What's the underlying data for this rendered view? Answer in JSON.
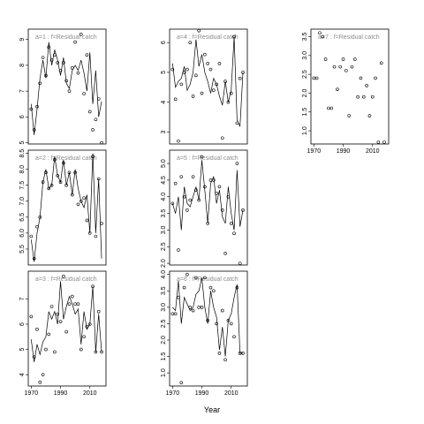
{
  "xlabel": "Year",
  "chart_data": [
    {
      "type": "line",
      "title": "a=1 : f=Residual catch",
      "x": [
        1970,
        1972,
        1974,
        1976,
        1978,
        1980,
        1982,
        1984,
        1986,
        1988,
        1990,
        1992,
        1994,
        1996,
        1998,
        2000,
        2002,
        2004,
        2006,
        2008,
        2010,
        2012,
        2014,
        2016,
        2018
      ],
      "series": [
        {
          "mark": "line",
          "color": "#000000",
          "values": [
            6.5,
            5.3,
            6.3,
            7.5,
            8.2,
            7.5,
            8.9,
            8.0,
            8.6,
            8.2,
            7.6,
            8.3,
            7.3,
            7.1,
            7.8,
            8.0,
            7.8,
            8.2,
            7.7,
            7.0,
            8.5,
            6.5,
            7.8,
            6.0,
            6.6
          ]
        },
        {
          "mark": "point",
          "color": "#000000",
          "values": [
            6.3,
            5.5,
            6.4,
            7.3,
            8.3,
            7.6,
            8.7,
            8.2,
            8.4,
            8.1,
            7.8,
            8.1,
            7.4,
            7.0,
            7.9,
            8.9,
            7.7,
            9.2,
            6.9,
            8.4,
            6.2,
            5.5,
            5.9,
            6.7,
            5.0
          ]
        }
      ],
      "xlim": [
        1968,
        2021
      ],
      "ylim": [
        4.95,
        9.4
      ],
      "yticks": [
        5,
        6,
        7,
        8,
        9
      ]
    },
    {
      "type": "line",
      "title": "a=2 : f=Residual catch",
      "x": [
        1970,
        1972,
        1974,
        1976,
        1978,
        1980,
        1982,
        1984,
        1986,
        1988,
        1990,
        1992,
        1994,
        1996,
        1998,
        2000,
        2002,
        2004,
        2006,
        2008,
        2010,
        2012,
        2014,
        2016,
        2018
      ],
      "series": [
        {
          "mark": "line",
          "color": "#000000",
          "values": [
            5.8,
            5.1,
            6.0,
            6.5,
            7.6,
            8.0,
            7.4,
            7.5,
            8.4,
            7.8,
            7.6,
            8.3,
            7.5,
            7.9,
            7.2,
            8.0,
            7.4,
            7.0,
            6.8,
            7.2,
            6.0,
            8.5,
            6.0,
            7.7,
            5.2
          ]
        },
        {
          "mark": "point",
          "color": "#000000",
          "values": [
            5.9,
            5.2,
            6.2,
            6.5,
            7.6,
            7.9,
            7.4,
            7.5,
            8.3,
            7.8,
            7.6,
            8.2,
            7.5,
            7.9,
            7.2,
            7.9,
            6.9,
            7.0,
            7.1,
            6.4,
            6.0,
            8.4,
            5.9,
            7.7,
            6.3
          ]
        }
      ],
      "xlim": [
        1968,
        2021
      ],
      "ylim": [
        5.0,
        8.6
      ],
      "yticks": [
        5.5,
        {
          "value": 6,
          "label": "6.0"
        },
        6.5,
        {
          "value": 7,
          "label": "7.0"
        },
        7.5,
        {
          "value": 8,
          "label": "8.0"
        },
        8.5
      ]
    },
    {
      "type": "line",
      "title": "a=3 : f=Residual catch",
      "x": [
        1970,
        1972,
        1974,
        1976,
        1978,
        1980,
        1982,
        1984,
        1986,
        1988,
        1990,
        1992,
        1994,
        1996,
        1998,
        2000,
        2002,
        2004,
        2006,
        2008,
        2010,
        2012,
        2014,
        2016,
        2018
      ],
      "series": [
        {
          "mark": "line",
          "color": "#000000",
          "values": [
            5.4,
            4.5,
            5.2,
            4.8,
            5.3,
            5.5,
            6.5,
            6.2,
            6.5,
            6.0,
            7.7,
            6.2,
            6.7,
            7.1,
            6.8,
            6.4,
            6.6,
            5.2,
            6.5,
            5.8,
            6.0,
            7.5,
            4.9,
            6.4,
            4.9
          ]
        },
        {
          "mark": "point",
          "color": "#000000",
          "values": [
            6.3,
            4.7,
            5.8,
            3.7,
            4.0,
            5.0,
            5.6,
            6.7,
            4.9,
            6.4,
            6.1,
            7.9,
            5.7,
            6.8,
            7.1,
            6.8,
            6.8,
            5.0,
            5.5,
            5.9,
            6.0,
            7.5,
            4.9,
            6.5,
            4.9
          ]
        }
      ],
      "xlim": [
        1968,
        2021
      ],
      "ylim": [
        3.55,
        8.1
      ],
      "yticks": [
        4,
        5,
        6,
        7
      ],
      "xticks": [
        1970,
        1990,
        2010
      ]
    },
    {
      "type": "line",
      "title": "a=4 : f=Residual catch",
      "x": [
        1970,
        1972,
        1974,
        1976,
        1978,
        1980,
        1982,
        1984,
        1986,
        1988,
        1990,
        1992,
        1994,
        1996,
        1998,
        2000,
        2002,
        2004,
        2006,
        2008,
        2010,
        2012,
        2014,
        2016,
        2018
      ],
      "series": [
        {
          "mark": "line",
          "color": "#000000",
          "values": [
            5.3,
            4.5,
            4.7,
            4.8,
            5.2,
            4.4,
            4.6,
            5.0,
            6.1,
            5.2,
            5.6,
            5.0,
            4.7,
            4.3,
            4.8,
            4.6,
            4.2,
            3.9,
            4.7,
            4.0,
            4.4,
            6.2,
            3.4,
            3.2,
            5.0
          ]
        },
        {
          "mark": "point",
          "color": "#000000",
          "values": [
            5.1,
            4.1,
            2.7,
            4.6,
            5.0,
            5.1,
            6.0,
            4.2,
            4.9,
            6.4,
            4.3,
            5.6,
            5.3,
            5.1,
            4.4,
            4.6,
            5.3,
            2.8,
            4.7,
            4.0,
            4.3,
            6.2,
            3.3,
            4.8,
            5.0
          ]
        }
      ],
      "xlim": [
        1968,
        2021
      ],
      "ylim": [
        2.6,
        6.45
      ],
      "yticks": [
        3,
        4,
        5,
        6
      ]
    },
    {
      "type": "line",
      "title": "a=5 : f=Residual catch",
      "x": [
        1970,
        1972,
        1974,
        1976,
        1978,
        1980,
        1982,
        1984,
        1986,
        1988,
        1990,
        1992,
        1994,
        1996,
        1998,
        2000,
        2002,
        2004,
        2006,
        2008,
        2010,
        2012,
        2014,
        2016,
        2018
      ],
      "series": [
        {
          "mark": "line",
          "color": "#000000",
          "values": [
            3.8,
            3.5,
            4.0,
            3.0,
            4.3,
            3.8,
            3.7,
            4.0,
            4.3,
            3.9,
            5.1,
            4.2,
            3.2,
            4.4,
            4.6,
            3.8,
            4.2,
            3.4,
            3.2,
            4.3,
            3.5,
            3.0,
            4.8,
            3.1,
            3.6
          ]
        },
        {
          "mark": "point",
          "color": "#000000",
          "values": [
            3.8,
            4.4,
            2.4,
            4.6,
            4.0,
            3.6,
            3.9,
            4.6,
            4.2,
            3.9,
            5.2,
            4.3,
            3.2,
            4.5,
            4.5,
            4.1,
            4.3,
            3.6,
            2.3,
            4.0,
            3.2,
            2.9,
            5.0,
            2.0,
            3.6
          ]
        }
      ],
      "xlim": [
        1968,
        2021
      ],
      "ylim": [
        1.95,
        5.4
      ],
      "yticks": [
        {
          "value": 2,
          "label": "2.0"
        },
        2.5,
        {
          "value": 3,
          "label": "3.0"
        },
        3.5,
        {
          "value": 4,
          "label": "4.0"
        },
        4.5,
        {
          "value": 5,
          "label": "5.0"
        }
      ]
    },
    {
      "type": "line",
      "title": "a=6 : f=Residual catch",
      "x": [
        1970,
        1972,
        1974,
        1976,
        1978,
        1980,
        1982,
        1984,
        1986,
        1988,
        1990,
        1992,
        1994,
        1996,
        1998,
        2000,
        2002,
        2004,
        2006,
        2008,
        2010,
        2012,
        2014,
        2016,
        2018
      ],
      "series": [
        {
          "mark": "line",
          "color": "#000000",
          "values": [
            3.0,
            2.9,
            3.8,
            2.5,
            3.3,
            3.1,
            2.9,
            3.0,
            3.4,
            3.5,
            3.9,
            3.0,
            2.5,
            3.5,
            3.0,
            2.7,
            1.7,
            2.4,
            1.5,
            2.6,
            2.8,
            3.3,
            3.7,
            1.6,
            1.6
          ]
        },
        {
          "mark": "point",
          "color": "#000000",
          "values": [
            2.8,
            2.8,
            3.3,
            0.7,
            3.6,
            4.0,
            3.0,
            2.9,
            3.9,
            3.0,
            3.0,
            3.9,
            2.6,
            3.6,
            3.5,
            2.5,
            1.6,
            2.9,
            1.4,
            2.6,
            2.5,
            2.1,
            3.6,
            1.6,
            1.6
          ]
        }
      ],
      "xlim": [
        1968,
        2021
      ],
      "ylim": [
        0.6,
        4.1
      ],
      "yticks": [
        {
          "value": 1,
          "label": "1.0"
        },
        1.5,
        {
          "value": 2,
          "label": "2.0"
        },
        2.5,
        {
          "value": 3,
          "label": "3.0"
        },
        3.5,
        {
          "value": 4,
          "label": "4.0"
        }
      ],
      "xticks": [
        1970,
        1990,
        2010
      ]
    },
    {
      "type": "line",
      "title": "a=7 : f=Residual catch",
      "x": [
        1970,
        1972,
        1974,
        1976,
        1978,
        1980,
        1982,
        1984,
        1986,
        1988,
        1990,
        1992,
        1994,
        1996,
        1998,
        2000,
        2002,
        2004,
        2006,
        2008,
        2010,
        2012,
        2014,
        2016,
        2018
      ],
      "series": [
        {
          "mark": "point",
          "color": "#000000",
          "values": [
            2.4,
            2.4,
            3.6,
            3.5,
            2.9,
            1.6,
            1.6,
            2.7,
            2.1,
            2.7,
            2.9,
            2.6,
            1.4,
            2.7,
            2.9,
            1.9,
            2.4,
            1.9,
            2.2,
            1.4,
            1.9,
            2.4,
            0.7,
            2.8,
            0.7
          ]
        }
      ],
      "xlim": [
        1968,
        2021
      ],
      "ylim": [
        0.65,
        3.7
      ],
      "yticks": [
        {
          "value": 1,
          "label": "1.0"
        },
        1.5,
        {
          "value": 2,
          "label": "2.0"
        },
        2.5,
        {
          "value": 3,
          "label": "3.0"
        },
        3.5
      ],
      "xticks": [
        1970,
        1990,
        2010
      ]
    }
  ]
}
